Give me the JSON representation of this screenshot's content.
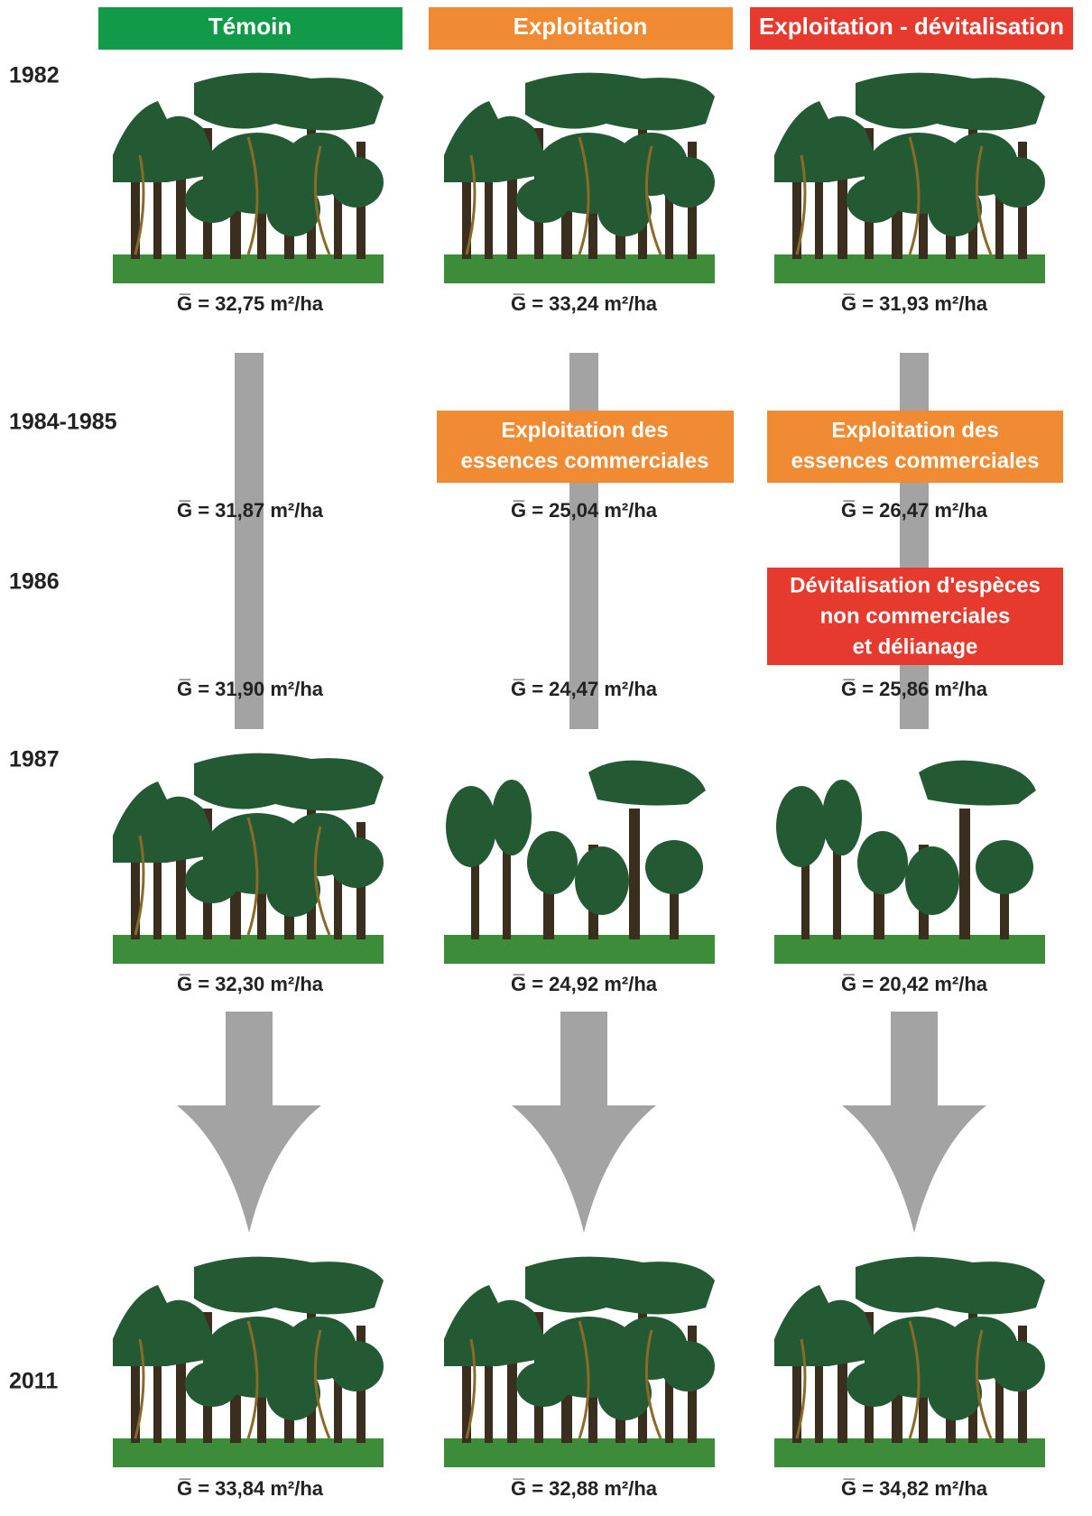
{
  "headers": [
    "Témoin",
    "Exploitation",
    "Exploitation - dévitalisation"
  ],
  "years": [
    "1982",
    "1984-1985",
    "1986",
    "1987",
    "2011"
  ],
  "measurements": [
    [
      "G̅ = 32,75 m²/ha",
      "G̅ = 31,87 m²/ha",
      "G̅ = 31,90 m²/ha",
      "G̅ = 32,30 m²/ha",
      "G̅ = 33,84 m²/ha"
    ],
    [
      "G̅ = 33,24 m²/ha",
      "G̅ = 25,04 m²/ha",
      "G̅ = 24,47 m²/ha",
      "G̅ = 24,92 m²/ha",
      "G̅ = 32,88 m²/ha"
    ],
    [
      "G̅ = 31,93 m²/ha",
      "G̅ = 26,47 m²/ha",
      "G̅ = 25,86 m²/ha",
      "G̅ = 20,42 m²/ha",
      "G̅ = 34,82 m²/ha"
    ]
  ],
  "boxes": [
    {
      "lines": [
        "Exploitation des",
        "essences commerciales"
      ]
    },
    {
      "lines": [
        "Exploitation des",
        "essences commerciales"
      ]
    },
    {
      "lines": [
        "Dévitalisation d'espèces",
        "non commerciales",
        "et délianage"
      ]
    }
  ]
}
